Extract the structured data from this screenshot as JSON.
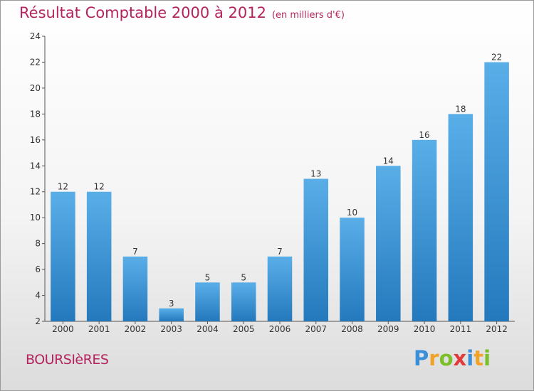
{
  "chart_data": {
    "type": "bar",
    "title": "Résultat Comptable 2000 à 2012",
    "subtitle": "(en milliers d'€)",
    "categories": [
      "2000",
      "2001",
      "2002",
      "2003",
      "2004",
      "2005",
      "2006",
      "2007",
      "2008",
      "2009",
      "2010",
      "2011",
      "2012"
    ],
    "values": [
      12,
      12,
      7,
      3,
      5,
      5,
      7,
      13,
      10,
      14,
      16,
      18,
      22
    ],
    "ylim": [
      2,
      24
    ],
    "yticks": [
      2,
      4,
      6,
      8,
      10,
      12,
      14,
      16,
      18,
      20,
      22,
      24
    ],
    "xlabel": "",
    "ylabel": "",
    "grid": false,
    "bar_color_top": "#5aaee8",
    "bar_color_bottom": "#2479bd"
  },
  "footer": {
    "commune": "BOURSIèRES",
    "logo_letters": [
      "P",
      "r",
      "o",
      "x",
      "i",
      "t",
      "i"
    ],
    "logo_colors": [
      "#3b8fd8",
      "#f0a22a",
      "#7bbf2a",
      "#e23a3a",
      "#3b8fd8",
      "#f0a22a",
      "#7bbf2a"
    ]
  }
}
